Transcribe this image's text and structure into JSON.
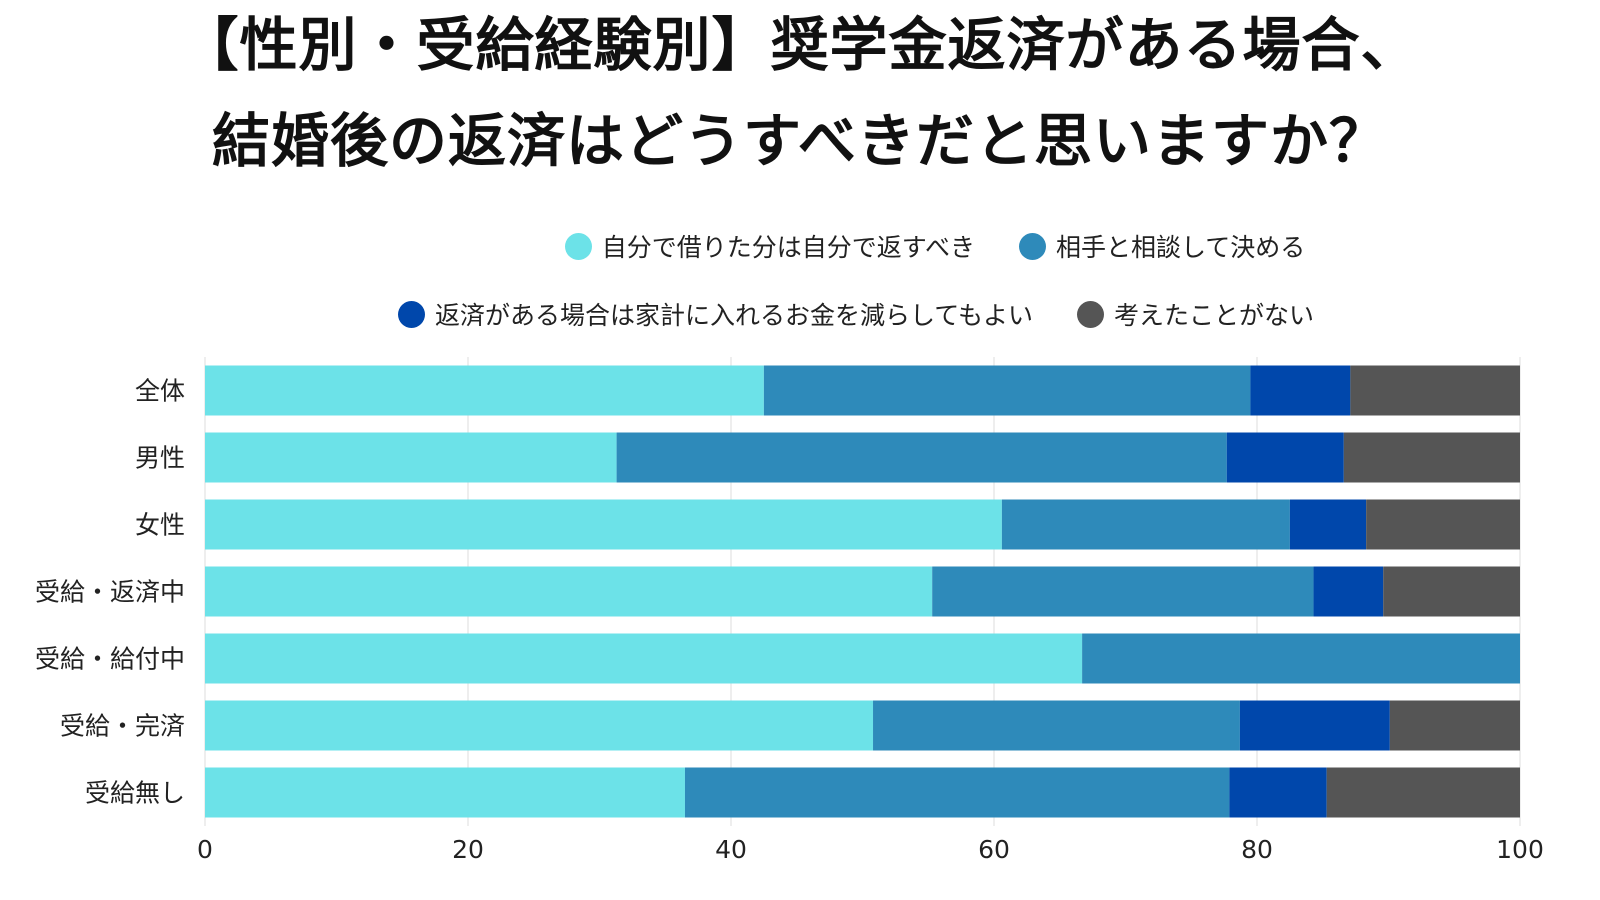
{
  "title_lines": [
    "【性別・受給経験別】奨学金返済がある場合、",
    "結婚後の返済はどうすべきだと思いますか？"
  ],
  "chart_data": {
    "type": "bar",
    "orientation": "horizontal",
    "stacked": true,
    "categories": [
      "全体",
      "男性",
      "女性",
      "受給・返済中",
      "受給・給付中",
      "受給・完済",
      "受給無し"
    ],
    "series": [
      {
        "name": "自分で借りた分は自分で返すべき",
        "color": "#6ce2e8",
        "values": [
          42.5,
          31.3,
          60.6,
          55.3,
          66.7,
          50.8,
          36.5
        ]
      },
      {
        "name": "相手と相談して決める",
        "color": "#2e8aba",
        "values": [
          37.0,
          46.4,
          21.9,
          29.0,
          33.3,
          27.9,
          41.4
        ]
      },
      {
        "name": "返済がある場合は家計に入れるお金を減らしてもよい",
        "color": "#0047ab",
        "values": [
          7.6,
          8.9,
          5.8,
          5.3,
          0,
          11.4,
          7.4
        ]
      },
      {
        "name": "考えたことがない",
        "color": "#555555",
        "values": [
          12.9,
          13.4,
          11.7,
          10.4,
          0,
          9.9,
          14.7
        ]
      }
    ],
    "xlim": [
      0,
      100
    ],
    "xticks": [
      "0",
      "20",
      "40",
      "60",
      "80",
      "100"
    ],
    "grid": true,
    "legend_position": "top"
  }
}
